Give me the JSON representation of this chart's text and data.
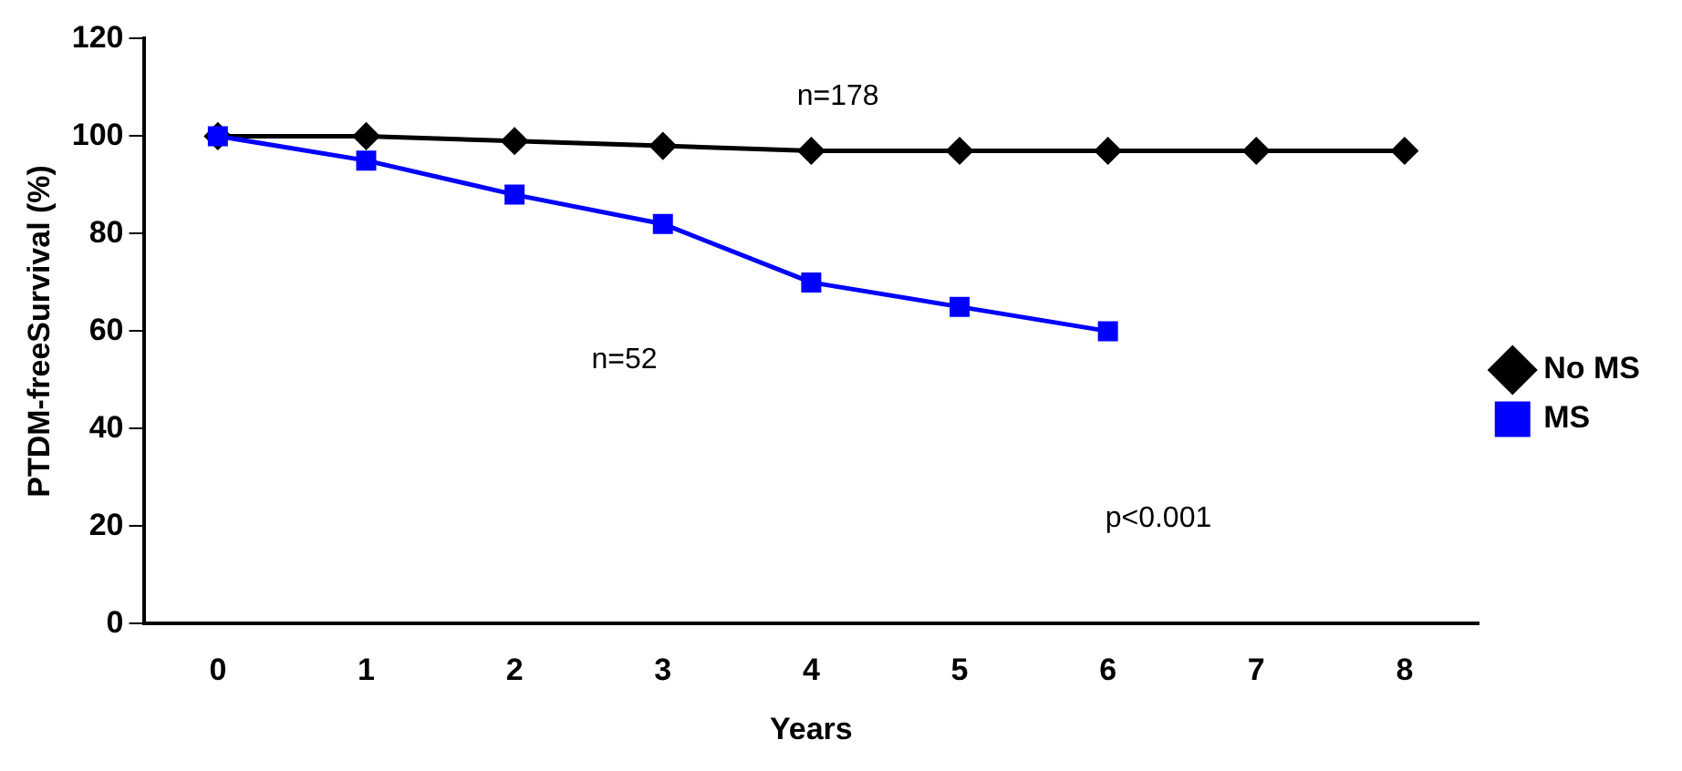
{
  "chart_data": {
    "type": "line",
    "xlabel": "Years",
    "ylabel": "PTDM-freeSurvival (%)",
    "categories": [
      "0",
      "1",
      "2",
      "3",
      "4",
      "5",
      "6",
      "7",
      "8"
    ],
    "series": [
      {
        "name": "No MS",
        "color": "#000000",
        "marker": "diamond",
        "values": [
          100,
          100,
          99,
          98,
          97,
          97,
          97,
          97,
          97
        ]
      },
      {
        "name": "MS",
        "color": "#0000ff",
        "marker": "square",
        "values": [
          100,
          95,
          88,
          82,
          70,
          65,
          60,
          null,
          null
        ]
      }
    ],
    "ylim": [
      0,
      120
    ],
    "yticks": [
      0,
      20,
      40,
      60,
      80,
      100,
      120
    ],
    "grid": false,
    "legend": "right",
    "annotations": [
      "n=178",
      "n=52",
      "p<0.001"
    ]
  }
}
